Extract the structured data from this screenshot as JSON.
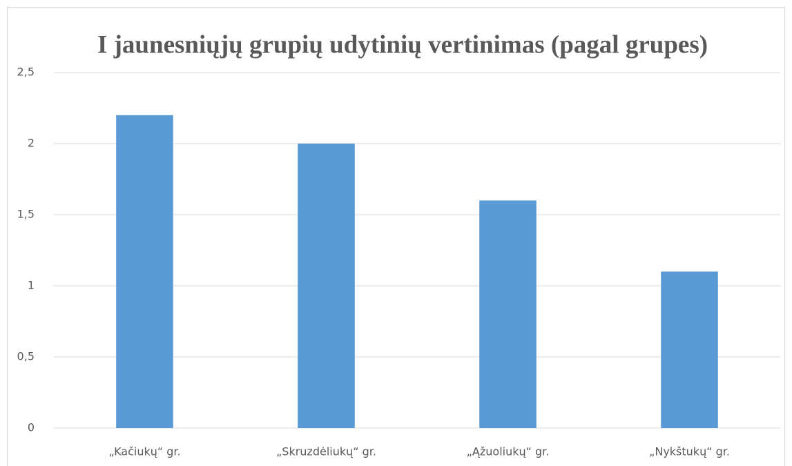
{
  "chart_data": {
    "type": "bar",
    "title": "I jaunesniųjų grupių udytinių vertinimas (pagal grupes)",
    "categories": [
      "„Kačiukų“ gr.",
      "„Skruzdėliukų“ gr.",
      "„Ąžuoliukų“ gr.",
      "„Nykštukų“ gr."
    ],
    "values": [
      2.2,
      2.0,
      1.6,
      1.1
    ],
    "color": "#5b9bd5",
    "ylim": [
      0,
      2.5
    ],
    "yticks": [
      0,
      {
        "value": 0.5,
        "label": "0,5"
      },
      1,
      {
        "value": 1.5,
        "label": "1,5"
      },
      2,
      {
        "value": 2.5,
        "label": "2,5"
      }
    ],
    "grid": true
  }
}
